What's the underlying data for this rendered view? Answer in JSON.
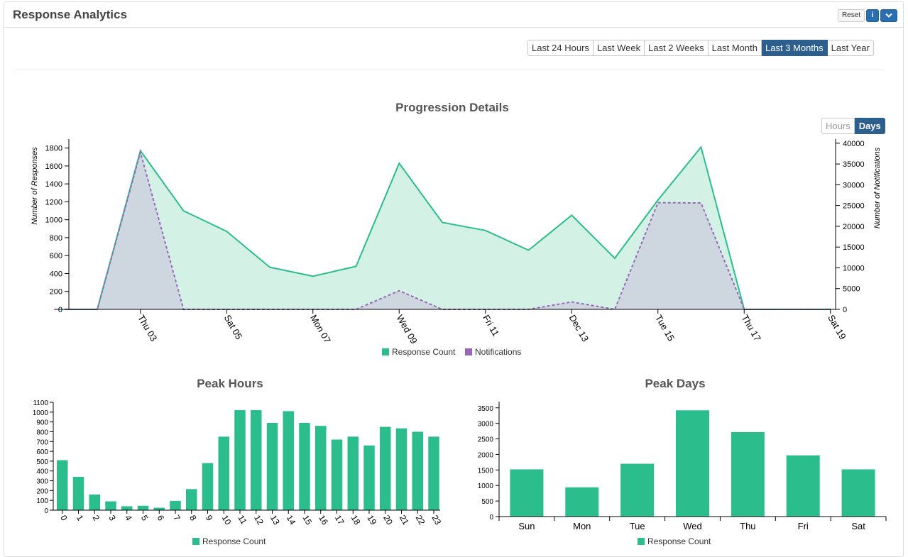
{
  "header": {
    "title": "Response Analytics",
    "reset_label": "Reset",
    "info_label": "i",
    "collapse_icon": "chevron-down-icon"
  },
  "range_buttons": {
    "items": [
      "Last 24 Hours",
      "Last Week",
      "Last 2 Weeks",
      "Last Month",
      "Last 3 Months",
      "Last Year"
    ],
    "active": "Last 3 Months"
  },
  "granularity": {
    "hours_label": "Hours",
    "days_label": "Days",
    "active": "Days"
  },
  "colors": {
    "response": "#2bbd8c",
    "response_fill": "#d4f1e6",
    "notifications": "#9966bb",
    "notifications_fill": "#cdd5df",
    "bar": "#2bbd8c",
    "active_button": "#2c5f8e"
  },
  "chart_data": [
    {
      "type": "area",
      "title": "Progression Details",
      "ylabel": "Number of Responses",
      "y2label": "Number of Notifications",
      "x_tick_labels": [
        "Thu 03",
        "Sat 05",
        "Mon 07",
        "Wed 09",
        "Fri 11",
        "Dec 13",
        "Tue 15",
        "Thu 17",
        "Sat 19"
      ],
      "x_days": [
        1,
        2,
        3,
        4,
        5,
        6,
        7,
        8,
        9,
        10,
        11,
        12,
        13,
        14,
        15,
        16,
        17,
        18,
        19
      ],
      "ylim": [
        0,
        1900
      ],
      "y_ticks": [
        0,
        200,
        400,
        600,
        800,
        1000,
        1200,
        1400,
        1600,
        1800
      ],
      "y2lim": [
        0,
        41000
      ],
      "y2_ticks": [
        0,
        5000,
        10000,
        15000,
        20000,
        25000,
        30000,
        35000,
        40000
      ],
      "series": [
        {
          "name": "Response Count",
          "axis": "left",
          "values": [
            0,
            0,
            1770,
            1100,
            870,
            470,
            370,
            480,
            1630,
            970,
            880,
            660,
            1050,
            570,
            1220,
            1810,
            0,
            0,
            0
          ]
        },
        {
          "name": "Notifications",
          "axis": "right",
          "values": [
            0,
            0,
            37800,
            0,
            0,
            0,
            0,
            0,
            4500,
            0,
            0,
            0,
            1800,
            0,
            25700,
            25600,
            0,
            0,
            0
          ]
        }
      ],
      "legend": "bottom-center"
    },
    {
      "type": "bar",
      "title": "Peak Hours",
      "categories": [
        "0",
        "1",
        "2",
        "3",
        "4",
        "5",
        "6",
        "7",
        "8",
        "9",
        "10",
        "11",
        "12",
        "13",
        "14",
        "15",
        "16",
        "17",
        "18",
        "19",
        "20",
        "21",
        "22",
        "23"
      ],
      "ylim": [
        0,
        1100
      ],
      "y_ticks": [
        0,
        100,
        200,
        300,
        400,
        500,
        600,
        700,
        800,
        900,
        1000,
        1100
      ],
      "series": [
        {
          "name": "Response Count",
          "values": [
            510,
            340,
            160,
            90,
            40,
            45,
            25,
            95,
            215,
            480,
            750,
            1020,
            1020,
            890,
            1010,
            890,
            860,
            720,
            750,
            660,
            850,
            835,
            800,
            750
          ]
        }
      ],
      "legend": "bottom-center"
    },
    {
      "type": "bar",
      "title": "Peak Days",
      "categories": [
        "Sun",
        "Mon",
        "Tue",
        "Wed",
        "Thu",
        "Fri",
        "Sat"
      ],
      "ylim": [
        0,
        3700
      ],
      "y_ticks": [
        0,
        500,
        1000,
        1500,
        2000,
        2500,
        3000,
        3500
      ],
      "series": [
        {
          "name": "Response Count",
          "values": [
            1520,
            940,
            1700,
            3420,
            2720,
            1970,
            1520
          ]
        }
      ],
      "legend": "bottom-center"
    }
  ]
}
